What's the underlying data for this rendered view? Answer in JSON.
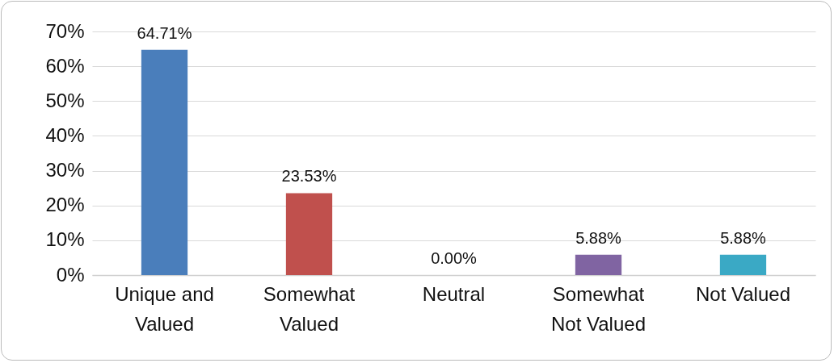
{
  "chart_data": {
    "type": "bar",
    "categories": [
      "Unique and Valued",
      "Somewhat Valued",
      "Neutral",
      "Somewhat Not Valued",
      "Not Valued"
    ],
    "values": [
      64.71,
      23.53,
      0,
      5.88,
      5.88
    ],
    "value_labels": [
      "64.71%",
      "23.53%",
      "0.00%",
      "5.88%",
      "5.88%"
    ],
    "colors": [
      "#4a7ebb",
      "#c0504d",
      "#9bbb59",
      "#8064a2",
      "#3aa9c5"
    ],
    "ylim": [
      0,
      70
    ],
    "yticks": [
      {
        "value": 0,
        "label": "0%"
      },
      {
        "value": 10,
        "label": "10%"
      },
      {
        "value": 20,
        "label": "20%"
      },
      {
        "value": 30,
        "label": "30%"
      },
      {
        "value": 40,
        "label": "40%"
      },
      {
        "value": 50,
        "label": "50%"
      },
      {
        "value": 60,
        "label": "60%"
      },
      {
        "value": 70,
        "label": "70%"
      }
    ],
    "grid": "y"
  }
}
